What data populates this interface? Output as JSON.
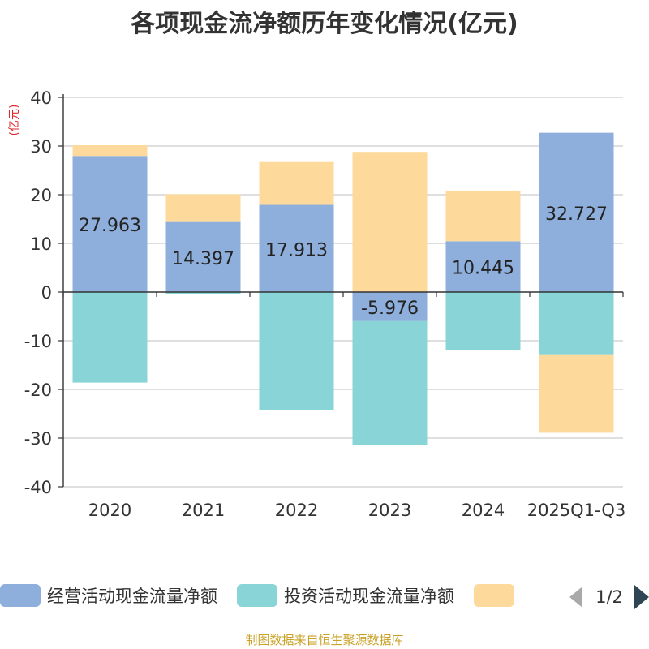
{
  "chart_data": {
    "type": "bar",
    "stacked": true,
    "title": "各项现金流净额历年变化情况(亿元)",
    "ylabel": "(亿元)",
    "xlabel": "",
    "ylim": [
      -40,
      40
    ],
    "yticks": [
      40,
      30,
      20,
      10,
      0,
      -10,
      -20,
      -30,
      -40
    ],
    "grid": true,
    "categories": [
      "2020",
      "2021",
      "2022",
      "2023",
      "2024",
      "2025Q1-Q3"
    ],
    "series": [
      {
        "name": "经营活动现金流量净额",
        "color": "#8eaedb",
        "values": [
          27.963,
          14.397,
          17.913,
          -5.976,
          10.445,
          32.727
        ],
        "labels": [
          "27.963",
          "14.397",
          "17.913",
          "-5.976",
          "10.445",
          "32.727"
        ]
      },
      {
        "name": "投资活动现金流量净额",
        "color": "#88d4d6",
        "values": [
          -18.6,
          -0.4,
          -24.2,
          -25.4,
          -12.0,
          -12.8
        ]
      },
      {
        "name": "",
        "color": "#fdd99b",
        "values": [
          2.2,
          5.7,
          8.8,
          28.8,
          10.4,
          -16.1
        ]
      }
    ],
    "legend": {
      "position": "bottom",
      "page": "1/2"
    }
  },
  "source_note": "制图数据来自恒生聚源数据库"
}
